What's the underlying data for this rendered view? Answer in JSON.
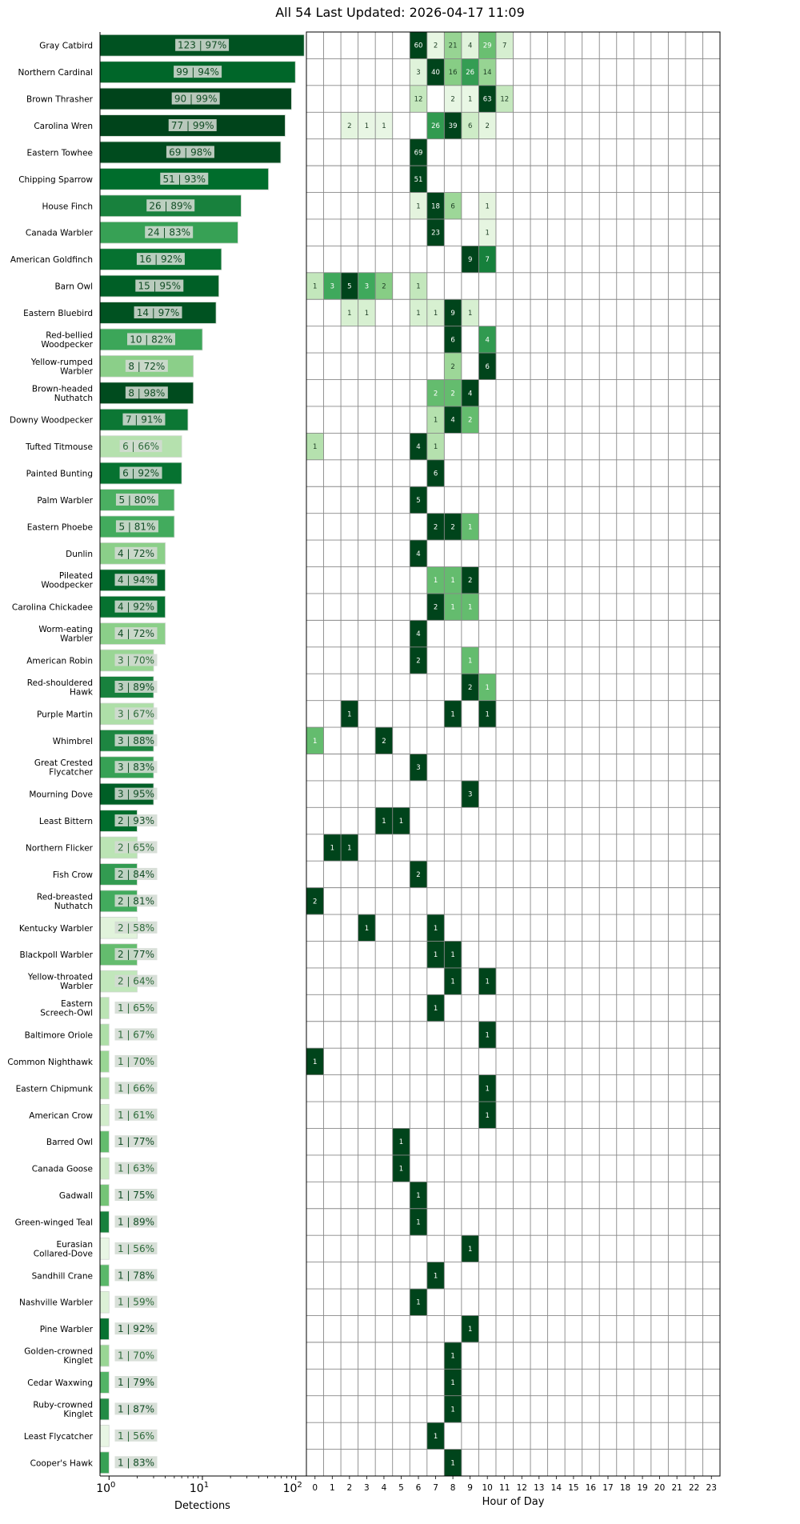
{
  "title": "All 54 Last Updated: 2026-04-17 11:09",
  "current_hour": 11,
  "current_hour_color": "#f2e34a",
  "chart_data": [
    {
      "type": "bar",
      "orientation": "horizontal",
      "xscale": "log",
      "xlabel": "Detections",
      "xlim": [
        0.8,
        130
      ],
      "xticks": [
        {
          "base": "10",
          "exp": "0"
        },
        {
          "base": "10",
          "exp": "1"
        },
        {
          "base": "10",
          "exp": "2"
        }
      ],
      "colormap": "Greens (by confidence)",
      "categories": [
        "Gray Catbird",
        "Northern Cardinal",
        "Brown Thrasher",
        "Carolina Wren",
        "Eastern Towhee",
        "Chipping Sparrow",
        "House Finch",
        "Canada Warbler",
        "American Goldfinch",
        "Barn Owl",
        "Eastern Bluebird",
        "Red-bellied Woodpecker",
        "Yellow-rumped Warbler",
        "Brown-headed Nuthatch",
        "Downy Woodpecker",
        "Tufted Titmouse",
        "Painted Bunting",
        "Palm Warbler",
        "Eastern Phoebe",
        "Dunlin",
        "Pileated Woodpecker",
        "Carolina Chickadee",
        "Worm-eating Warbler",
        "American Robin",
        "Red-shouldered Hawk",
        "Purple Martin",
        "Whimbrel",
        "Great Crested Flycatcher",
        "Mourning Dove",
        "Least Bittern",
        "Northern Flicker",
        "Fish Crow",
        "Red-breasted Nuthatch",
        "Kentucky Warbler",
        "Blackpoll Warbler",
        "Yellow-throated Warbler",
        "Eastern Screech-Owl",
        "Baltimore Oriole",
        "Common Nighthawk",
        "Eastern Chipmunk",
        "American Crow",
        "Barred Owl",
        "Canada Goose",
        "Gadwall",
        "Green-winged Teal",
        "Eurasian Collared-Dove",
        "Sandhill Crane",
        "Nashville Warbler",
        "Pine Warbler",
        "Golden-crowned Kinglet",
        "Cedar Waxwing",
        "Ruby-crowned Kinglet",
        "Least Flycatcher",
        "Cooper's Hawk"
      ],
      "values": [
        123,
        99,
        90,
        77,
        69,
        51,
        26,
        24,
        16,
        15,
        14,
        10,
        8,
        8,
        7,
        6,
        6,
        5,
        5,
        4,
        4,
        4,
        4,
        3,
        3,
        3,
        3,
        3,
        3,
        2,
        2,
        2,
        2,
        2,
        2,
        2,
        1,
        1,
        1,
        1,
        1,
        1,
        1,
        1,
        1,
        1,
        1,
        1,
        1,
        1,
        1,
        1,
        1,
        1
      ],
      "confidence_pct": [
        97,
        94,
        99,
        99,
        98,
        93,
        89,
        83,
        92,
        95,
        97,
        82,
        72,
        98,
        91,
        66,
        92,
        80,
        81,
        72,
        94,
        92,
        72,
        70,
        89,
        67,
        88,
        83,
        95,
        93,
        65,
        84,
        81,
        58,
        77,
        64,
        65,
        67,
        70,
        66,
        61,
        77,
        63,
        75,
        89,
        56,
        78,
        59,
        92,
        70,
        79,
        87,
        56,
        83
      ],
      "labels": [
        "123 | 97%",
        "99 | 94%",
        "90 | 99%",
        "77 | 99%",
        "69 | 98%",
        "51 | 93%",
        "26 | 89%",
        "24 | 83%",
        "16 | 92%",
        "15 | 95%",
        "14 | 97%",
        "10 | 82%",
        "8 | 72%",
        "8 | 98%",
        "7 | 91%",
        "6 | 66%",
        "6 | 92%",
        "5 | 80%",
        "5 | 81%",
        "4 | 72%",
        "4 | 94%",
        "4 | 92%",
        "4 | 72%",
        "3 | 70%",
        "3 | 89%",
        "3 | 67%",
        "3 | 88%",
        "3 | 83%",
        "3 | 95%",
        "2 | 93%",
        "2 | 65%",
        "2 | 84%",
        "2 | 81%",
        "2 | 58%",
        "2 | 77%",
        "2 | 64%",
        "1 | 65%",
        "1 | 67%",
        "1 | 70%",
        "1 | 66%",
        "1 | 61%",
        "1 | 77%",
        "1 | 63%",
        "1 | 75%",
        "1 | 89%",
        "1 | 56%",
        "1 | 78%",
        "1 | 59%",
        "1 | 92%",
        "1 | 70%",
        "1 | 79%",
        "1 | 87%",
        "1 | 56%",
        "1 | 83%"
      ]
    },
    {
      "type": "heatmap",
      "xlabel": "Hour of Day",
      "x": [
        "0",
        "1",
        "2",
        "3",
        "4",
        "5",
        "6",
        "7",
        "8",
        "9",
        "10",
        "11",
        "12",
        "13",
        "14",
        "15",
        "16",
        "17",
        "18",
        "19",
        "20",
        "21",
        "22",
        "23"
      ],
      "y": [
        "Gray Catbird",
        "Northern Cardinal",
        "Brown Thrasher",
        "Carolina Wren",
        "Eastern Towhee",
        "Chipping Sparrow",
        "House Finch",
        "Canada Warbler",
        "American Goldfinch",
        "Barn Owl",
        "Eastern Bluebird",
        "Red-bellied Woodpecker",
        "Yellow-rumped Warbler",
        "Brown-headed Nuthatch",
        "Downy Woodpecker",
        "Tufted Titmouse",
        "Painted Bunting",
        "Palm Warbler",
        "Eastern Phoebe",
        "Dunlin",
        "Pileated Woodpecker",
        "Carolina Chickadee",
        "Worm-eating Warbler",
        "American Robin",
        "Red-shouldered Hawk",
        "Purple Martin",
        "Whimbrel",
        "Great Crested Flycatcher",
        "Mourning Dove",
        "Least Bittern",
        "Northern Flicker",
        "Fish Crow",
        "Red-breasted Nuthatch",
        "Kentucky Warbler",
        "Blackpoll Warbler",
        "Yellow-throated Warbler",
        "Eastern Screech-Owl",
        "Baltimore Oriole",
        "Common Nighthawk",
        "Eastern Chipmunk",
        "American Crow",
        "Barred Owl",
        "Canada Goose",
        "Gadwall",
        "Green-winged Teal",
        "Eurasian Collared-Dove",
        "Sandhill Crane",
        "Nashville Warbler",
        "Pine Warbler",
        "Golden-crowned Kinglet",
        "Cedar Waxwing",
        "Ruby-crowned Kinglet",
        "Least Flycatcher",
        "Cooper's Hawk"
      ],
      "colormap": "Greens (per-row normalized)",
      "cells": [
        [
          [
            6,
            60
          ],
          [
            7,
            2
          ],
          [
            8,
            21
          ],
          [
            9,
            4
          ],
          [
            10,
            29
          ],
          [
            11,
            7
          ]
        ],
        [
          [
            6,
            3
          ],
          [
            7,
            40
          ],
          [
            8,
            16
          ],
          [
            9,
            26
          ],
          [
            10,
            14
          ]
        ],
        [
          [
            6,
            12
          ],
          [
            8,
            2
          ],
          [
            9,
            1
          ],
          [
            10,
            63
          ],
          [
            11,
            12
          ]
        ],
        [
          [
            2,
            2
          ],
          [
            3,
            1
          ],
          [
            4,
            1
          ],
          [
            7,
            26
          ],
          [
            8,
            39
          ],
          [
            9,
            6
          ],
          [
            10,
            2
          ]
        ],
        [
          [
            6,
            69
          ]
        ],
        [
          [
            6,
            51
          ]
        ],
        [
          [
            6,
            1
          ],
          [
            7,
            18
          ],
          [
            8,
            6
          ],
          [
            10,
            1
          ]
        ],
        [
          [
            7,
            23
          ],
          [
            10,
            1
          ]
        ],
        [
          [
            9,
            9
          ],
          [
            10,
            7
          ]
        ],
        [
          [
            0,
            1
          ],
          [
            1,
            3
          ],
          [
            2,
            5
          ],
          [
            3,
            3
          ],
          [
            4,
            2
          ],
          [
            6,
            1
          ]
        ],
        [
          [
            2,
            1
          ],
          [
            3,
            1
          ],
          [
            6,
            1
          ],
          [
            7,
            1
          ],
          [
            8,
            9
          ],
          [
            9,
            1
          ]
        ],
        [
          [
            8,
            6
          ],
          [
            10,
            4
          ]
        ],
        [
          [
            8,
            2
          ],
          [
            10,
            6
          ]
        ],
        [
          [
            7,
            2
          ],
          [
            8,
            2
          ],
          [
            9,
            4
          ]
        ],
        [
          [
            7,
            1
          ],
          [
            8,
            4
          ],
          [
            9,
            2
          ]
        ],
        [
          [
            0,
            1
          ],
          [
            6,
            4
          ],
          [
            7,
            1
          ]
        ],
        [
          [
            7,
            6
          ]
        ],
        [
          [
            6,
            5
          ]
        ],
        [
          [
            7,
            2
          ],
          [
            8,
            2
          ],
          [
            9,
            1
          ]
        ],
        [
          [
            6,
            4
          ]
        ],
        [
          [
            7,
            1
          ],
          [
            8,
            1
          ],
          [
            9,
            2
          ]
        ],
        [
          [
            7,
            2
          ],
          [
            8,
            1
          ],
          [
            9,
            1
          ]
        ],
        [
          [
            6,
            4
          ]
        ],
        [
          [
            6,
            2
          ],
          [
            9,
            1
          ]
        ],
        [
          [
            9,
            2
          ],
          [
            10,
            1
          ]
        ],
        [
          [
            2,
            1
          ],
          [
            8,
            1
          ],
          [
            10,
            1
          ]
        ],
        [
          [
            0,
            1
          ],
          [
            4,
            2
          ]
        ],
        [
          [
            6,
            3
          ]
        ],
        [
          [
            9,
            3
          ]
        ],
        [
          [
            4,
            1
          ],
          [
            5,
            1
          ]
        ],
        [
          [
            1,
            1
          ],
          [
            2,
            1
          ]
        ],
        [
          [
            6,
            2
          ]
        ],
        [
          [
            0,
            2
          ]
        ],
        [
          [
            3,
            1
          ],
          [
            7,
            1
          ]
        ],
        [
          [
            7,
            1
          ],
          [
            8,
            1
          ]
        ],
        [
          [
            8,
            1
          ],
          [
            10,
            1
          ]
        ],
        [
          [
            7,
            1
          ]
        ],
        [
          [
            10,
            1
          ]
        ],
        [
          [
            0,
            1
          ]
        ],
        [
          [
            10,
            1
          ]
        ],
        [
          [
            10,
            1
          ]
        ],
        [
          [
            5,
            1
          ]
        ],
        [
          [
            5,
            1
          ]
        ],
        [
          [
            6,
            1
          ]
        ],
        [
          [
            6,
            1
          ]
        ],
        [
          [
            9,
            1
          ]
        ],
        [
          [
            7,
            1
          ]
        ],
        [
          [
            6,
            1
          ]
        ],
        [
          [
            9,
            1
          ]
        ],
        [
          [
            8,
            1
          ]
        ],
        [
          [
            8,
            1
          ]
        ],
        [
          [
            8,
            1
          ]
        ],
        [
          [
            7,
            1
          ]
        ],
        [
          [
            8,
            1
          ]
        ]
      ]
    }
  ]
}
